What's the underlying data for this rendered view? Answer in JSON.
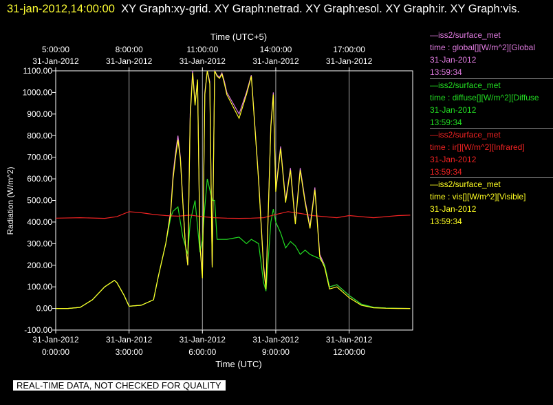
{
  "title": {
    "timestamp": "31-jan-2012,14:00:00",
    "text": "XY Graph:xy-grid.  XY Graph:netrad.  XY Graph:esol.  XY Graph:ir.  XY Graph:vis."
  },
  "footer": "REAL-TIME DATA, NOT CHECKED FOR QUALITY",
  "legend": [
    {
      "line1": "—iss2/surface_met",
      "line2": "time : global[][W/m^2][Global",
      "line3": "31-Jan-2012",
      "line4": "13:59:34",
      "color": "#e07be0"
    },
    {
      "line1": "—iss2/surface_met",
      "line2": "time : diffuse[][W/m^2][Diffuse",
      "line3": "31-Jan-2012",
      "line4": "13:59:34",
      "color": "#22dd22"
    },
    {
      "line1": "—iss2/surface_met",
      "line2": "time : ir[][W/m^2][Infrared]",
      "line3": "31-Jan-2012",
      "line4": "13:59:34",
      "color": "#ee2222"
    },
    {
      "line1": "—iss2/surface_met",
      "line2": "time : vis[][W/m^2][Visible]",
      "line3": "31-Jan-2012",
      "line4": "13:59:34",
      "color": "#ffff22"
    }
  ],
  "chart_data": {
    "type": "line",
    "xlabel": "Time (UTC)",
    "x2label": "Time (UTC+5)",
    "ylabel": "Radiation (W/m^2)",
    "xlim": [
      0,
      14.6
    ],
    "ylim": [
      -100,
      1100
    ],
    "grid": true,
    "x_ticks": [
      {
        "x": 0,
        "date": "31-Jan-2012",
        "time": "0:00:00"
      },
      {
        "x": 3,
        "date": "31-Jan-2012",
        "time": "3:00:00"
      },
      {
        "x": 6,
        "date": "31-Jan-2012",
        "time": "6:00:00"
      },
      {
        "x": 9,
        "date": "31-Jan-2012",
        "time": "9:00:00"
      },
      {
        "x": 12,
        "date": "31-Jan-2012",
        "time": "12:00:00"
      }
    ],
    "x2_ticks": [
      {
        "x": 0,
        "time": "5:00:00",
        "date": "31-Jan-2012"
      },
      {
        "x": 3,
        "time": "8:00:00",
        "date": "31-Jan-2012"
      },
      {
        "x": 6,
        "time": "11:00:00",
        "date": "31-Jan-2012"
      },
      {
        "x": 9,
        "time": "14:00:00",
        "date": "31-Jan-2012"
      },
      {
        "x": 12,
        "time": "17:00:00",
        "date": "31-Jan-2012"
      }
    ],
    "y_ticks": [
      {
        "v": 1100,
        "label": "1100.00"
      },
      {
        "v": 1000,
        "label": "1000.00"
      },
      {
        "v": 900,
        "label": "900.00"
      },
      {
        "v": 800,
        "label": "800.00"
      },
      {
        "v": 700,
        "label": "700.00"
      },
      {
        "v": 600,
        "label": "600.00"
      },
      {
        "v": 500,
        "label": "500.00"
      },
      {
        "v": 400,
        "label": "400.00"
      },
      {
        "v": 300,
        "label": "300.00"
      },
      {
        "v": 200,
        "label": "200.00"
      },
      {
        "v": 100,
        "label": "100.00"
      },
      {
        "v": 0,
        "label": "0.00"
      },
      {
        "v": -100,
        "label": "-100.00"
      }
    ],
    "series": [
      {
        "name": "global",
        "color": "#e07be0",
        "x": [
          0,
          0.5,
          1,
          1.5,
          2,
          2.4,
          2.5,
          2.8,
          3,
          3.5,
          4,
          4.2,
          4.5,
          4.7,
          4.8,
          4.9,
          5,
          5.1,
          5.2,
          5.3,
          5.4,
          5.5,
          5.6,
          5.7,
          5.8,
          5.9,
          6,
          6.1,
          6.2,
          6.3,
          6.4,
          6.5,
          6.6,
          6.7,
          6.8,
          6.9,
          7,
          7.5,
          7.8,
          8,
          8.3,
          8.5,
          8.6,
          8.8,
          8.9,
          9,
          9.2,
          9.4,
          9.6,
          9.8,
          10,
          10.2,
          10.4,
          10.6,
          10.8,
          11,
          11.2,
          11.5,
          12,
          12.5,
          13,
          13.5,
          14,
          14.5
        ],
        "y": [
          0,
          0,
          5,
          40,
          100,
          130,
          120,
          60,
          10,
          15,
          40,
          150,
          300,
          450,
          620,
          720,
          800,
          700,
          500,
          300,
          200,
          900,
          1100,
          950,
          1050,
          300,
          150,
          1000,
          1100,
          1050,
          200,
          1100,
          1080,
          1070,
          1090,
          1050,
          1000,
          900,
          1000,
          1080,
          600,
          200,
          100,
          850,
          1000,
          550,
          750,
          500,
          650,
          400,
          650,
          500,
          380,
          560,
          250,
          200,
          100,
          110,
          60,
          20,
          5,
          2,
          1,
          0
        ]
      },
      {
        "name": "diffuse",
        "color": "#22dd22",
        "x": [
          0,
          0.5,
          1,
          1.5,
          2,
          2.4,
          2.5,
          2.8,
          3,
          3.5,
          4,
          4.2,
          4.5,
          4.7,
          4.8,
          5,
          5.2,
          5.4,
          5.5,
          5.7,
          5.9,
          6,
          6.1,
          6.2,
          6.3,
          6.4,
          6.5,
          6.6,
          7,
          7.5,
          7.8,
          8,
          8.3,
          8.5,
          8.6,
          8.8,
          8.9,
          9,
          9.2,
          9.4,
          9.6,
          9.8,
          10,
          10.2,
          10.4,
          10.6,
          10.8,
          11,
          11.2,
          11.5,
          12,
          12.5,
          13,
          13.5,
          14,
          14.5
        ],
        "y": [
          0,
          0,
          5,
          40,
          100,
          130,
          120,
          60,
          10,
          15,
          40,
          150,
          300,
          420,
          450,
          470,
          330,
          250,
          400,
          500,
          260,
          320,
          470,
          600,
          550,
          500,
          500,
          320,
          320,
          330,
          300,
          320,
          300,
          120,
          80,
          400,
          460,
          400,
          350,
          280,
          310,
          290,
          250,
          270,
          250,
          240,
          230,
          200,
          100,
          110,
          60,
          20,
          5,
          2,
          1,
          0
        ]
      },
      {
        "name": "ir",
        "color": "#ee2222",
        "x": [
          0,
          1,
          2,
          2.5,
          3,
          3.5,
          4,
          4.5,
          5,
          5.5,
          6,
          6.5,
          7,
          7.5,
          8,
          8.5,
          9,
          9.5,
          10,
          10.5,
          11,
          11.5,
          12,
          12.5,
          13,
          13.5,
          14,
          14.5
        ],
        "y": [
          418,
          420,
          417,
          425,
          448,
          443,
          435,
          430,
          427,
          432,
          425,
          420,
          418,
          417,
          418,
          420,
          435,
          448,
          440,
          430,
          425,
          420,
          430,
          425,
          420,
          425,
          430,
          432
        ]
      },
      {
        "name": "vis",
        "color": "#ffff22",
        "x": [
          0,
          0.5,
          1,
          1.5,
          2,
          2.4,
          2.5,
          2.8,
          3,
          3.5,
          4,
          4.2,
          4.5,
          4.7,
          4.8,
          4.9,
          5,
          5.1,
          5.2,
          5.3,
          5.4,
          5.5,
          5.6,
          5.7,
          5.8,
          5.9,
          6,
          6.1,
          6.2,
          6.3,
          6.4,
          6.5,
          6.6,
          6.7,
          6.8,
          6.9,
          7,
          7.5,
          7.8,
          8,
          8.3,
          8.5,
          8.6,
          8.8,
          8.9,
          9,
          9.2,
          9.4,
          9.6,
          9.8,
          10,
          10.2,
          10.4,
          10.6,
          10.8,
          11,
          11.2,
          11.5,
          12,
          12.5,
          13,
          13.5,
          14,
          14.5
        ],
        "y": [
          0,
          0,
          5,
          40,
          100,
          130,
          120,
          60,
          10,
          15,
          40,
          150,
          300,
          440,
          600,
          700,
          780,
          690,
          490,
          300,
          200,
          880,
          1090,
          940,
          1060,
          290,
          140,
          990,
          1100,
          1040,
          190,
          1100,
          1075,
          1065,
          1085,
          1040,
          990,
          880,
          990,
          1075,
          590,
          190,
          90,
          840,
          990,
          540,
          740,
          490,
          640,
          390,
          640,
          490,
          370,
          550,
          240,
          190,
          90,
          100,
          50,
          15,
          3,
          1,
          0,
          0
        ]
      }
    ]
  }
}
